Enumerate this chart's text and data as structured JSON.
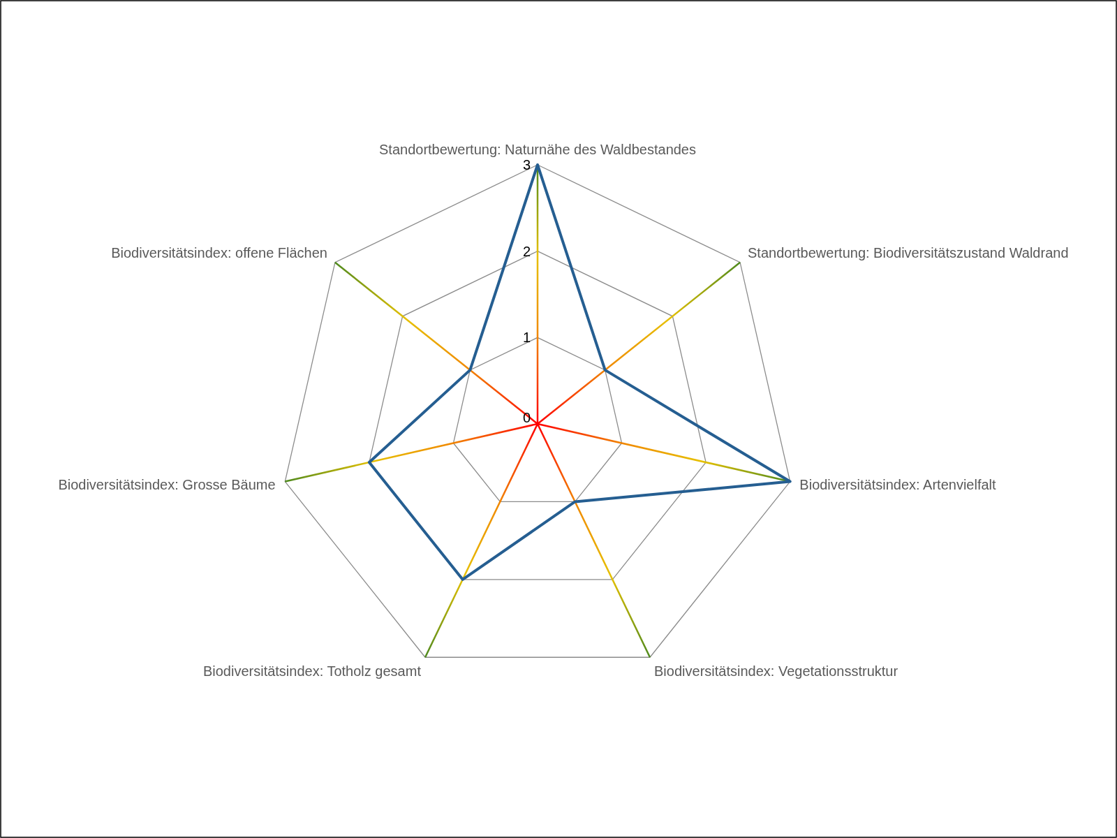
{
  "chart_data": {
    "type": "radar",
    "categories": [
      "Standortbewertung: Naturnähe des Waldbestandes",
      "Standortbewertung: Biodiversitätszustand Waldrand",
      "Biodiversitätsindex: Artenvielfalt",
      "Biodiversitätsindex: Vegetationsstruktur",
      "Biodiversitätsindex: Totholz gesamt",
      "Biodiversitätsindex: Grosse Bäume",
      "Biodiversitätsindex: offene Flächen"
    ],
    "series": [
      {
        "color": "#255e91",
        "values": [
          3,
          1,
          3,
          1,
          2,
          2,
          1
        ]
      }
    ],
    "ylim": [
      0,
      3
    ],
    "yticks": [
      0,
      1,
      2,
      3
    ],
    "grid": true,
    "marker": "none",
    "line_style": "solid"
  }
}
